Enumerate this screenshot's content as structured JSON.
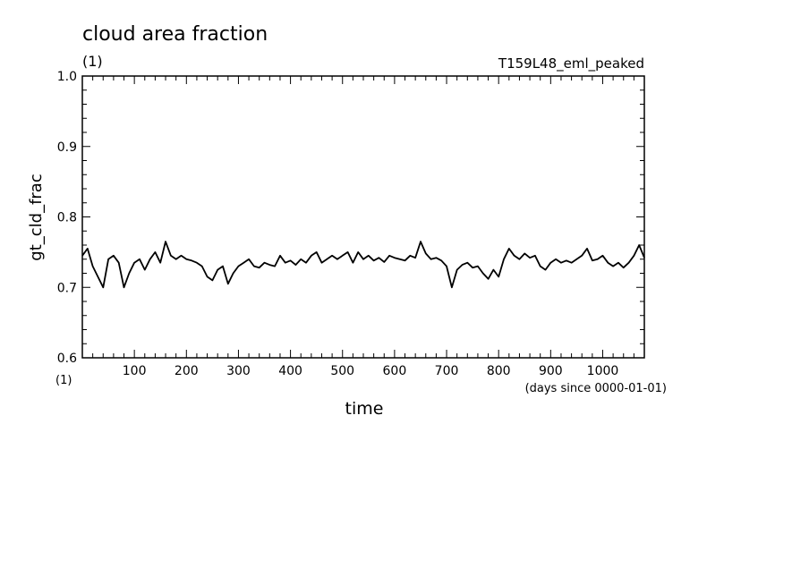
{
  "chart_data": {
    "type": "line",
    "title": "cloud area fraction",
    "title_units": "(1)",
    "experiment": "T159L48_eml_peaked",
    "ylabel": "gt_cld_frac",
    "yunits": "(1)",
    "xlabel": "time",
    "xunits": "(days since 0000-01-01)",
    "xlim": [
      0,
      1080
    ],
    "ylim": [
      0.6,
      1.0
    ],
    "xticks": [
      100,
      200,
      300,
      400,
      500,
      600,
      700,
      800,
      900,
      1000
    ],
    "xtick_labels": [
      "100",
      "200",
      "300",
      "400",
      "500",
      "600",
      "700",
      "800",
      "900",
      "1000"
    ],
    "yticks": [
      0.6,
      0.7,
      0.8,
      0.9,
      1.0
    ],
    "ytick_labels": [
      "0.6",
      "0.7",
      "0.8",
      "0.9",
      "1.0"
    ],
    "grid": false,
    "line_color": "#000000",
    "series": [
      {
        "x": [
          0,
          10,
          20,
          30,
          40,
          50,
          60,
          70,
          80,
          90,
          100,
          110,
          120,
          130,
          140,
          150,
          160,
          170,
          180,
          190,
          200,
          210,
          220,
          230,
          240,
          250,
          260,
          270,
          280,
          290,
          300,
          310,
          320,
          330,
          340,
          350,
          360,
          370,
          380,
          390,
          400,
          410,
          420,
          430,
          440,
          450,
          460,
          470,
          480,
          490,
          500,
          510,
          520,
          530,
          540,
          550,
          560,
          570,
          580,
          590,
          600,
          610,
          620,
          630,
          640,
          650,
          660,
          670,
          680,
          690,
          700,
          710,
          720,
          730,
          740,
          750,
          760,
          770,
          780,
          790,
          800,
          810,
          820,
          830,
          840,
          850,
          860,
          870,
          880,
          890,
          900,
          910,
          920,
          930,
          940,
          950,
          960,
          970,
          980,
          990,
          1000,
          1010,
          1020,
          1030,
          1040,
          1050,
          1060,
          1070,
          1080
        ],
        "y": [
          0.745,
          0.755,
          0.73,
          0.715,
          0.7,
          0.74,
          0.745,
          0.735,
          0.7,
          0.72,
          0.735,
          0.74,
          0.725,
          0.74,
          0.75,
          0.735,
          0.765,
          0.745,
          0.74,
          0.745,
          0.74,
          0.738,
          0.735,
          0.73,
          0.715,
          0.71,
          0.725,
          0.73,
          0.705,
          0.72,
          0.73,
          0.735,
          0.74,
          0.73,
          0.728,
          0.735,
          0.732,
          0.73,
          0.745,
          0.735,
          0.738,
          0.732,
          0.74,
          0.735,
          0.745,
          0.75,
          0.735,
          0.74,
          0.745,
          0.74,
          0.745,
          0.75,
          0.735,
          0.75,
          0.74,
          0.745,
          0.738,
          0.742,
          0.736,
          0.745,
          0.742,
          0.74,
          0.738,
          0.745,
          0.742,
          0.765,
          0.748,
          0.74,
          0.742,
          0.738,
          0.73,
          0.7,
          0.725,
          0.732,
          0.735,
          0.728,
          0.73,
          0.72,
          0.712,
          0.725,
          0.715,
          0.74,
          0.755,
          0.745,
          0.74,
          0.748,
          0.742,
          0.745,
          0.73,
          0.725,
          0.735,
          0.74,
          0.735,
          0.738,
          0.735,
          0.74,
          0.745,
          0.755,
          0.738,
          0.74,
          0.745,
          0.735,
          0.73,
          0.735,
          0.728,
          0.735,
          0.745,
          0.76,
          0.742
        ]
      }
    ]
  }
}
